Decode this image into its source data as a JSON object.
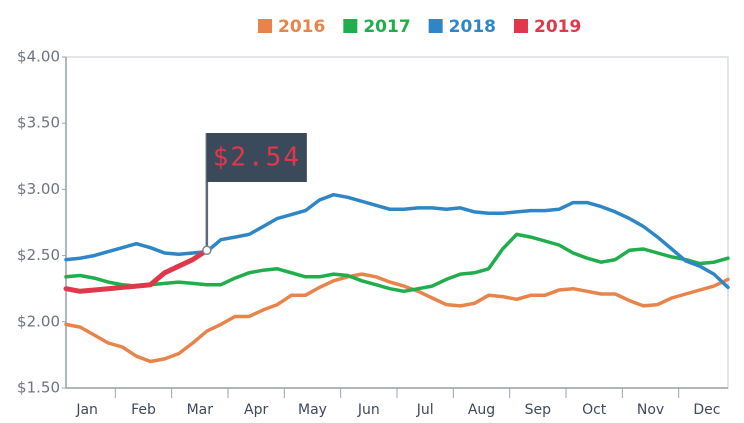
{
  "chart_data": {
    "type": "line",
    "categories": [
      null,
      null,
      "Jan",
      null,
      null,
      null,
      "Feb",
      null,
      null,
      null,
      "Mar",
      null,
      null,
      null,
      "Apr",
      null,
      null,
      null,
      "May",
      null,
      null,
      null,
      "Jun",
      null,
      null,
      null,
      "Jul",
      null,
      null,
      null,
      "Aug",
      null,
      null,
      null,
      "Sep",
      null,
      null,
      null,
      "Oct",
      null,
      null,
      null,
      "Nov",
      null,
      null,
      null,
      "Dec",
      null
    ],
    "series": [
      {
        "name": "2016",
        "color": "#e8844a",
        "values": [
          1.98,
          1.96,
          1.9,
          1.84,
          1.81,
          1.74,
          1.7,
          1.72,
          1.76,
          1.84,
          1.93,
          1.98,
          2.04,
          2.04,
          2.09,
          2.13,
          2.2,
          2.2,
          2.26,
          2.31,
          2.34,
          2.36,
          2.34,
          2.3,
          2.27,
          2.23,
          2.18,
          2.13,
          2.12,
          2.14,
          2.2,
          2.19,
          2.17,
          2.2,
          2.2,
          2.24,
          2.25,
          2.23,
          2.21,
          2.21,
          2.16,
          2.12,
          2.13,
          2.18,
          2.21,
          2.24,
          2.27,
          2.32
        ]
      },
      {
        "name": "2017",
        "color": "#1fae4b",
        "values": [
          2.34,
          2.35,
          2.33,
          2.3,
          2.28,
          2.27,
          2.28,
          2.29,
          2.3,
          2.29,
          2.28,
          2.28,
          2.33,
          2.37,
          2.39,
          2.4,
          2.37,
          2.34,
          2.34,
          2.36,
          2.35,
          2.31,
          2.28,
          2.25,
          2.23,
          2.25,
          2.27,
          2.32,
          2.36,
          2.37,
          2.4,
          2.55,
          2.66,
          2.64,
          2.61,
          2.58,
          2.52,
          2.48,
          2.45,
          2.47,
          2.54,
          2.55,
          2.52,
          2.49,
          2.47,
          2.44,
          2.45,
          2.48
        ]
      },
      {
        "name": "2018",
        "color": "#2f86c6",
        "values": [
          2.47,
          2.48,
          2.5,
          2.53,
          2.56,
          2.59,
          2.56,
          2.52,
          2.51,
          2.52,
          2.53,
          2.62,
          2.64,
          2.66,
          2.72,
          2.78,
          2.81,
          2.84,
          2.92,
          2.96,
          2.94,
          2.91,
          2.88,
          2.85,
          2.85,
          2.86,
          2.86,
          2.85,
          2.86,
          2.83,
          2.82,
          2.82,
          2.83,
          2.84,
          2.84,
          2.85,
          2.9,
          2.9,
          2.87,
          2.83,
          2.78,
          2.72,
          2.64,
          2.55,
          2.46,
          2.42,
          2.36,
          2.26
        ]
      },
      {
        "name": "2019",
        "color": "#e0384a",
        "values": [
          2.25,
          2.23,
          2.24,
          2.25,
          2.26,
          2.27,
          2.28,
          2.37,
          2.42,
          2.47,
          2.54,
          null,
          null,
          null,
          null,
          null,
          null,
          null,
          null,
          null,
          null,
          null,
          null,
          null,
          null,
          null,
          null,
          null,
          null,
          null,
          null,
          null,
          null,
          null,
          null,
          null,
          null,
          null,
          null,
          null,
          null,
          null,
          null,
          null,
          null,
          null,
          null,
          null
        ]
      }
    ],
    "annotation": "$2.54",
    "ylim": [
      1.5,
      4
    ],
    "yticks": [
      {
        "value": 1.5,
        "label": "$1.50"
      },
      {
        "value": 2,
        "label": "$2.00"
      },
      {
        "value": 2.5,
        "label": "$2.50"
      },
      {
        "value": 3,
        "label": "$3.00"
      },
      {
        "value": 3.5,
        "label": "$3.50"
      },
      {
        "value": 4,
        "label": "$4.00"
      }
    ],
    "grid": false
  }
}
